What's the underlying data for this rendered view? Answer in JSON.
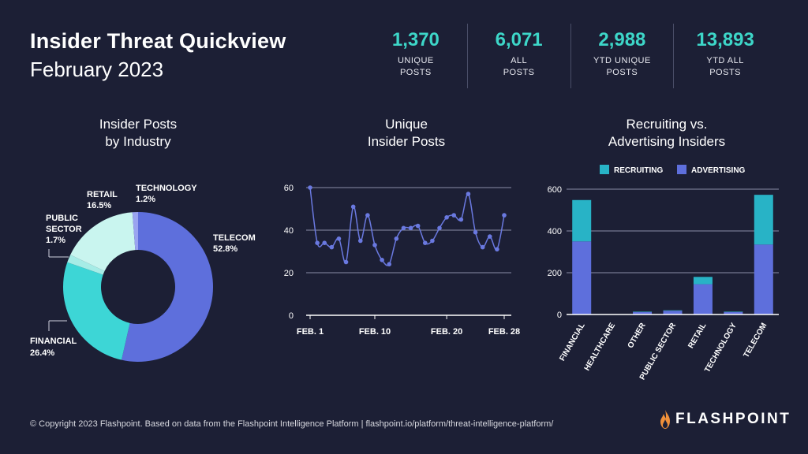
{
  "header": {
    "title": "Insider Threat Quickview",
    "subtitle": "February 2023"
  },
  "stats": [
    {
      "value": "1,370",
      "label": "UNIQUE\nPOSTS"
    },
    {
      "value": "6,071",
      "label": "ALL\nPOSTS"
    },
    {
      "value": "2,988",
      "label": "YTD UNIQUE\nPOSTS"
    },
    {
      "value": "13,893",
      "label": "YTD ALL\nPOSTS"
    }
  ],
  "colors": {
    "background": "#1c1f35",
    "accent": "#3dd6c8",
    "telecom": "#5e6fdc",
    "financial": "#3dd6d6",
    "public_sector": "#a6ece6",
    "retail": "#c9f5ef",
    "technology": "#9aa4f0",
    "line": "#6a79e0",
    "recruiting": "#28b3c6",
    "advertising": "#5e6fdc"
  },
  "chart_data": [
    {
      "type": "pie",
      "title": "Insider Posts\nby Industry",
      "slices": [
        {
          "label": "TELECOM",
          "percent_label": "52.8%",
          "value": 52.8
        },
        {
          "label": "FINANCIAL",
          "percent_label": "26.4%",
          "value": 26.4
        },
        {
          "label": "PUBLIC SECTOR",
          "percent_label": "1.7%",
          "value": 1.7
        },
        {
          "label": "RETAIL",
          "percent_label": "16.5%",
          "value": 16.5
        },
        {
          "label": "TECHNOLOGY",
          "percent_label": "1.2%",
          "value": 1.2
        }
      ]
    },
    {
      "type": "line",
      "title": "Unique\nInsider Posts",
      "x": [
        1,
        2,
        3,
        4,
        5,
        6,
        7,
        8,
        9,
        10,
        11,
        12,
        13,
        14,
        15,
        16,
        17,
        18,
        19,
        20,
        21,
        22,
        23,
        24,
        25,
        26,
        27,
        28
      ],
      "x_tick_values": [
        1,
        10,
        20,
        28
      ],
      "x_tick_labels": [
        "FEB. 1",
        "FEB. 10",
        "FEB. 20",
        "FEB. 28"
      ],
      "y": [
        60,
        34,
        34,
        32,
        36,
        25,
        51,
        35,
        47,
        33,
        26,
        24,
        36,
        41,
        41,
        42,
        34,
        35,
        41,
        46,
        47,
        45,
        57,
        39,
        32,
        37,
        31,
        47
      ],
      "ylim": [
        0,
        60
      ],
      "yticks": [
        0,
        20,
        40,
        60
      ],
      "grid": true
    },
    {
      "type": "bar",
      "stacked": true,
      "title": "Recruiting vs.\nAdvertising Insiders",
      "categories": [
        "FINANCIAL",
        "HEALTHCARE",
        "OTHER",
        "PUBLIC SECTOR",
        "RETAIL",
        "TECHNOLOGY",
        "TELECOM"
      ],
      "series": [
        {
          "name": "ADVERTISING",
          "values": [
            350,
            0,
            12,
            18,
            145,
            12,
            335
          ]
        },
        {
          "name": "RECRUITING",
          "values": [
            198,
            0,
            2,
            2,
            35,
            2,
            238
          ]
        }
      ],
      "ylim": [
        0,
        600
      ],
      "yticks": [
        0,
        200,
        400,
        600
      ],
      "legend": "top",
      "grid": true
    }
  ],
  "footer": {
    "text": "© Copyright 2023 Flashpoint. Based on data from the Flashpoint Intelligence Platform  |  flashpoint.io/platform/threat-intelligence-platform/"
  },
  "logo": {
    "text": "FLASHPOINT",
    "icon": "flame-icon"
  }
}
